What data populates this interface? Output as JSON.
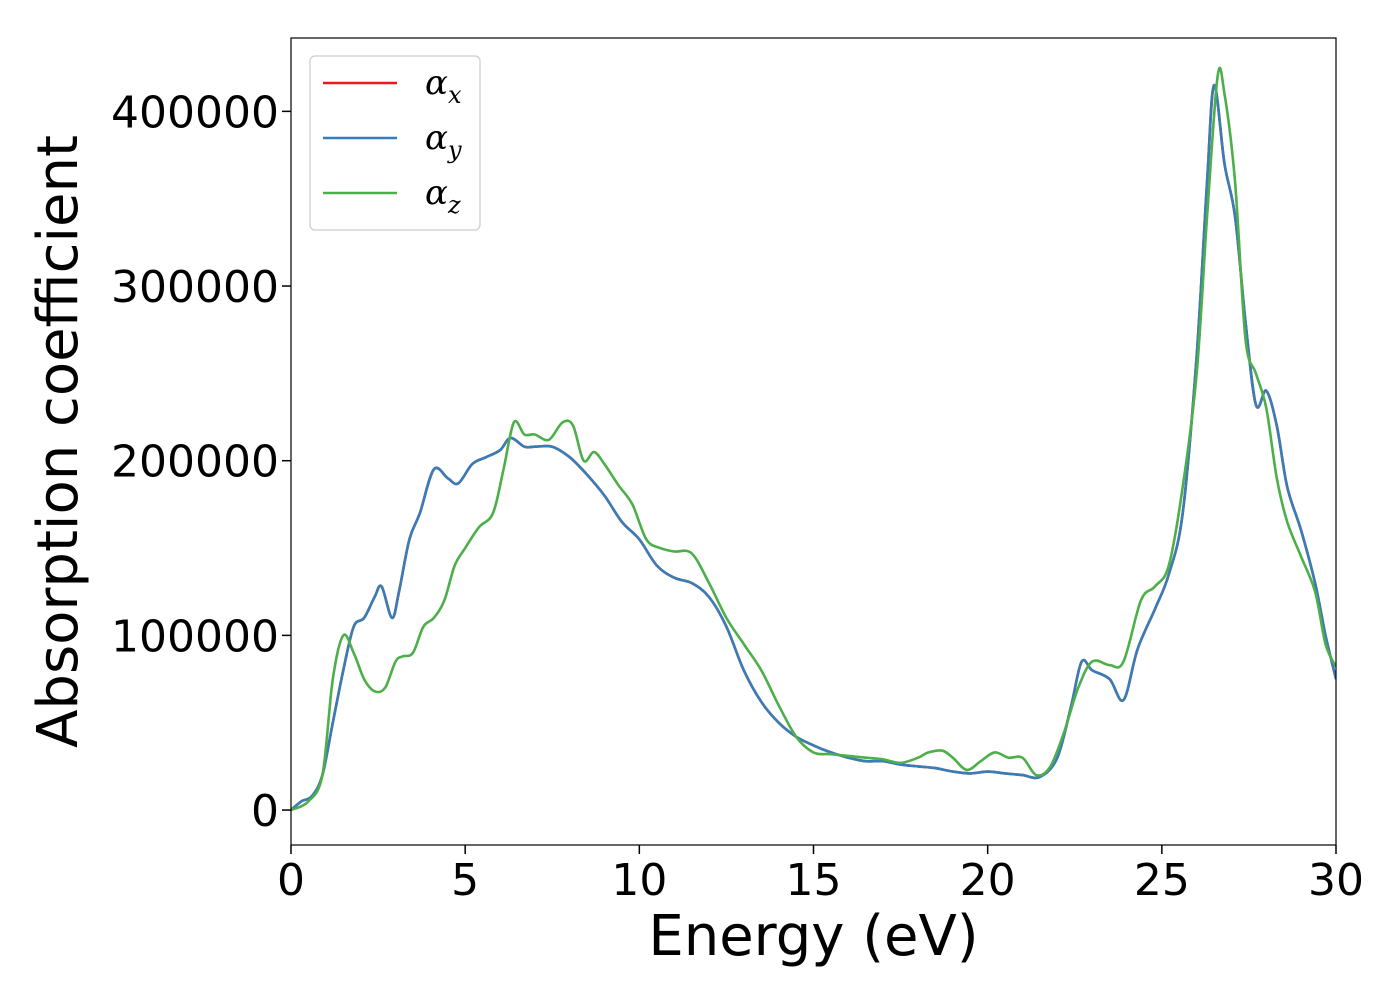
{
  "chart_data": {
    "type": "line",
    "title": "",
    "xlabel": "Energy (eV)",
    "ylabel": "Absorption coefficient",
    "xlim": [
      0,
      30
    ],
    "ylim": [
      -20000,
      442000
    ],
    "xticks": [
      0,
      5,
      10,
      15,
      20,
      25,
      30
    ],
    "yticks": [
      0,
      100000,
      200000,
      300000,
      400000
    ],
    "grid": false,
    "legend_position": "top-left",
    "series": [
      {
        "name": "αx",
        "color": "#e41a1c",
        "x": [
          0,
          0.3,
          0.6,
          0.9,
          1.2,
          1.5,
          1.8,
          2.1,
          2.4,
          2.6,
          2.9,
          3.1,
          3.4,
          3.7,
          4.1,
          4.5,
          4.8,
          5.2,
          5.6,
          6.0,
          6.3,
          6.7,
          7.0,
          7.5,
          8.0,
          8.5,
          9.0,
          9.5,
          10.0,
          10.5,
          11.0,
          11.5,
          12.0,
          12.5,
          13.0,
          13.5,
          14.0,
          14.5,
          15.0,
          15.5,
          16.0,
          16.5,
          17.0,
          17.5,
          18.0,
          18.5,
          19.0,
          19.5,
          20.0,
          20.5,
          21.0,
          21.5,
          22.0,
          22.4,
          22.7,
          23.0,
          23.5,
          23.9,
          24.3,
          24.8,
          25.2,
          25.6,
          26.0,
          26.3,
          26.5,
          26.8,
          27.1,
          27.4,
          27.7,
          28.0,
          28.3,
          28.6,
          29.0,
          29.4,
          29.7,
          30.0
        ],
        "y": [
          0,
          5000,
          8000,
          20000,
          50000,
          80000,
          105000,
          110000,
          122000,
          128000,
          110000,
          125000,
          155000,
          170000,
          195000,
          190000,
          187000,
          198000,
          202000,
          206000,
          213000,
          208000,
          208000,
          208000,
          202000,
          192000,
          180000,
          165000,
          155000,
          140000,
          133000,
          130000,
          122000,
          105000,
          80000,
          62000,
          50000,
          42000,
          37000,
          33000,
          30000,
          28000,
          28000,
          26000,
          25000,
          24000,
          22000,
          21000,
          22000,
          21000,
          20000,
          19000,
          30000,
          60000,
          85000,
          80000,
          75000,
          63000,
          92000,
          115000,
          135000,
          170000,
          260000,
          360000,
          415000,
          370000,
          340000,
          280000,
          232000,
          240000,
          220000,
          185000,
          160000,
          130000,
          100000,
          75000
        ]
      },
      {
        "name": "αy",
        "color": "#377eb8",
        "x": [
          0,
          0.3,
          0.6,
          0.9,
          1.2,
          1.5,
          1.8,
          2.1,
          2.4,
          2.6,
          2.9,
          3.1,
          3.4,
          3.7,
          4.1,
          4.5,
          4.8,
          5.2,
          5.6,
          6.0,
          6.3,
          6.7,
          7.0,
          7.5,
          8.0,
          8.5,
          9.0,
          9.5,
          10.0,
          10.5,
          11.0,
          11.5,
          12.0,
          12.5,
          13.0,
          13.5,
          14.0,
          14.5,
          15.0,
          15.5,
          16.0,
          16.5,
          17.0,
          17.5,
          18.0,
          18.5,
          19.0,
          19.5,
          20.0,
          20.5,
          21.0,
          21.5,
          22.0,
          22.4,
          22.7,
          23.0,
          23.5,
          23.9,
          24.3,
          24.8,
          25.2,
          25.6,
          26.0,
          26.3,
          26.5,
          26.8,
          27.1,
          27.4,
          27.7,
          28.0,
          28.3,
          28.6,
          29.0,
          29.4,
          29.7,
          30.0
        ],
        "y": [
          0,
          5000,
          8000,
          20000,
          50000,
          80000,
          105000,
          110000,
          122000,
          128000,
          110000,
          125000,
          155000,
          170000,
          195000,
          190000,
          187000,
          198000,
          202000,
          206000,
          213000,
          208000,
          208000,
          208000,
          202000,
          192000,
          180000,
          165000,
          155000,
          140000,
          133000,
          130000,
          122000,
          105000,
          80000,
          62000,
          50000,
          42000,
          37000,
          33000,
          30000,
          28000,
          28000,
          26000,
          25000,
          24000,
          22000,
          21000,
          22000,
          21000,
          20000,
          19000,
          30000,
          60000,
          85000,
          80000,
          75000,
          63000,
          92000,
          115000,
          135000,
          170000,
          260000,
          360000,
          415000,
          370000,
          340000,
          280000,
          232000,
          240000,
          220000,
          185000,
          160000,
          130000,
          100000,
          75000
        ]
      },
      {
        "name": "αz",
        "color": "#4daf4a",
        "x": [
          0,
          0.5,
          0.9,
          1.2,
          1.5,
          1.8,
          2.1,
          2.4,
          2.7,
          3.0,
          3.2,
          3.5,
          3.8,
          4.1,
          4.4,
          4.7,
          5.0,
          5.4,
          5.8,
          6.1,
          6.4,
          6.7,
          7.0,
          7.4,
          7.8,
          8.1,
          8.4,
          8.7,
          9.0,
          9.4,
          9.8,
          10.2,
          10.6,
          11.0,
          11.5,
          12.0,
          12.5,
          13.0,
          13.5,
          14.0,
          14.5,
          15.0,
          15.5,
          16.0,
          16.5,
          17.0,
          17.5,
          18.0,
          18.3,
          18.7,
          19.0,
          19.4,
          19.8,
          20.2,
          20.6,
          21.0,
          21.4,
          21.8,
          22.2,
          22.6,
          23.0,
          23.5,
          23.9,
          24.4,
          24.8,
          25.2,
          25.6,
          26.0,
          26.3,
          26.6,
          26.8,
          27.1,
          27.4,
          27.7,
          28.0,
          28.3,
          28.6,
          29.0,
          29.4,
          29.7,
          30.0
        ],
        "y": [
          0,
          5000,
          20000,
          75000,
          100000,
          90000,
          75000,
          68000,
          70000,
          85000,
          88000,
          90000,
          105000,
          110000,
          120000,
          140000,
          150000,
          162000,
          170000,
          195000,
          222000,
          215000,
          215000,
          212000,
          222000,
          220000,
          200000,
          205000,
          198000,
          186000,
          175000,
          155000,
          150000,
          148000,
          147000,
          130000,
          110000,
          95000,
          80000,
          60000,
          42000,
          33000,
          32000,
          31000,
          30000,
          29000,
          27000,
          30000,
          33000,
          34000,
          30000,
          23000,
          28000,
          33000,
          30000,
          30000,
          20000,
          25000,
          45000,
          70000,
          85000,
          83000,
          85000,
          120000,
          128000,
          140000,
          185000,
          250000,
          340000,
          420000,
          410000,
          360000,
          270000,
          250000,
          230000,
          190000,
          165000,
          145000,
          125000,
          95000,
          82000
        ]
      }
    ]
  }
}
